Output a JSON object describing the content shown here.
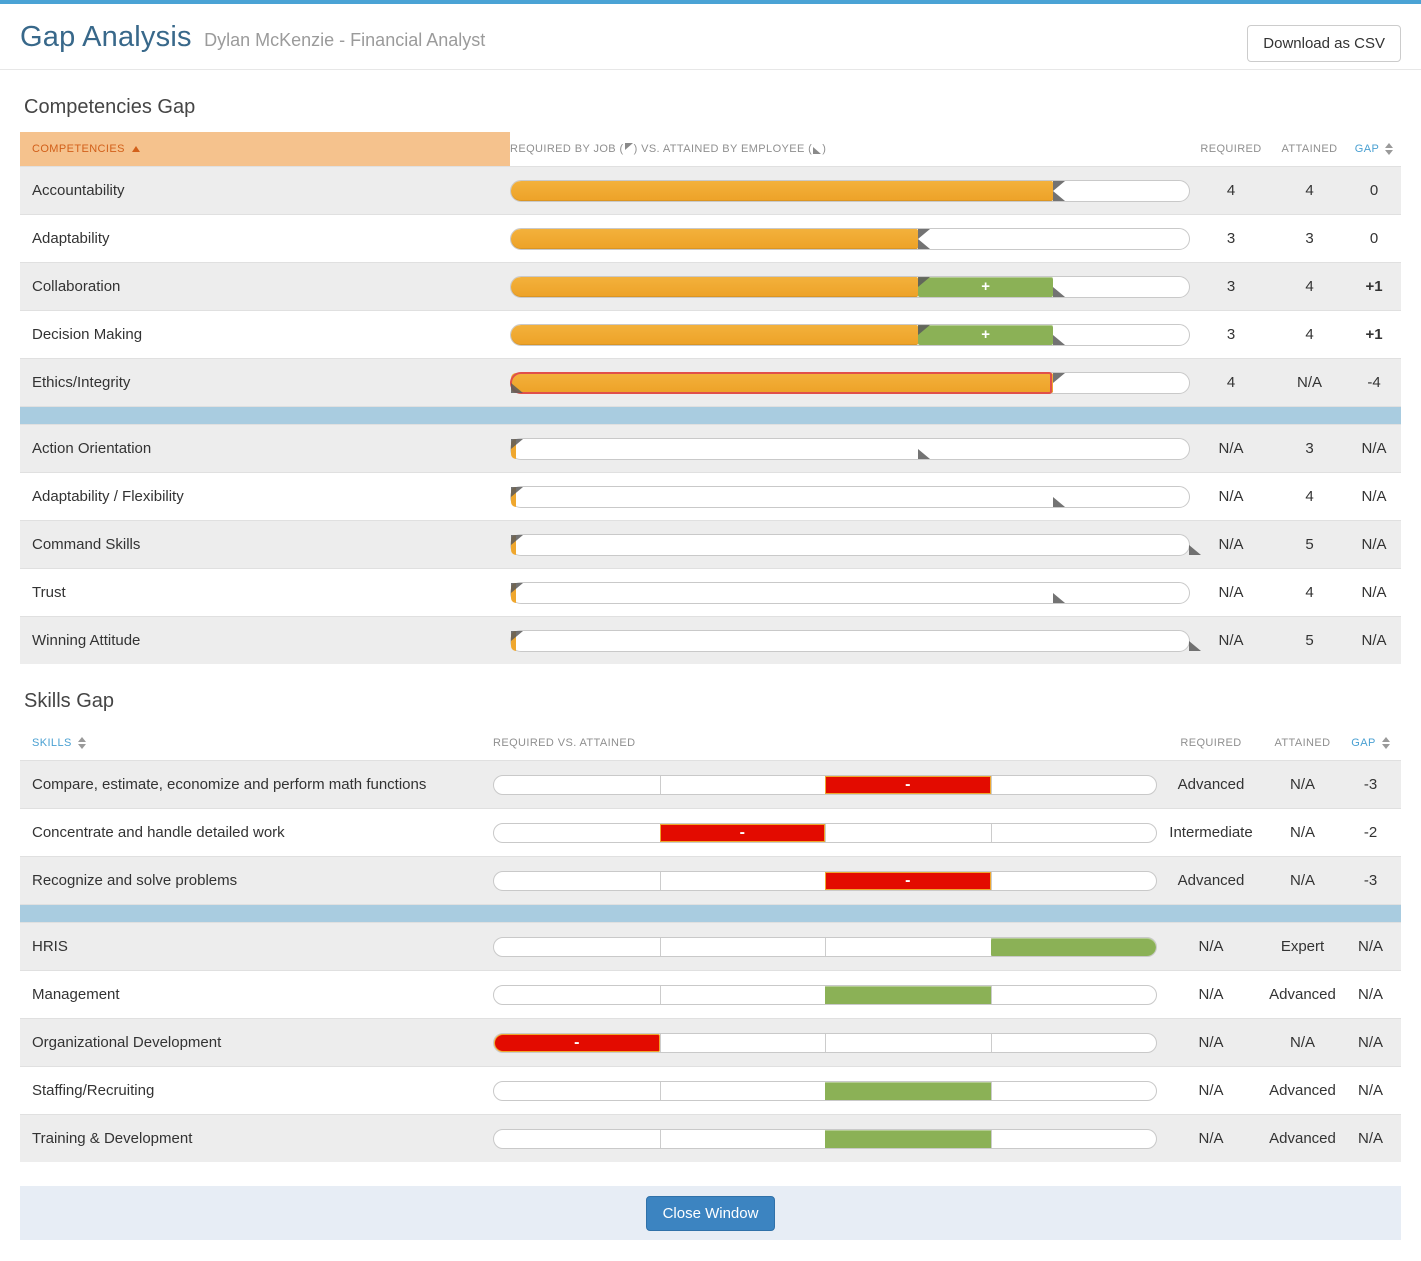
{
  "page": {
    "title": "Gap Analysis",
    "subtitle": "Dylan McKenzie - Financial Analyst",
    "download_button_label": "Download as CSV",
    "close_button_label": "Close Window"
  },
  "colors": {
    "top_accent": "#4aa3d5",
    "title_blue": "#38688a",
    "header_highlight_bg": "#f5c28d",
    "header_highlight_text": "#d2601a",
    "sortable_blue": "#4aa0d2",
    "required_bar_orange": "#efa72e",
    "surplus_green": "#8bb156",
    "deficit_red": "#e30b00",
    "deficit_outline_red": "#e0504a",
    "divider_blue": "#a9cce0",
    "positive_gap_green": "#2f9e1e",
    "flag_gray": "#5a5a5a"
  },
  "competencies": {
    "section_title": "Competencies Gap",
    "scale_max": 5,
    "surplus_label": "+",
    "na_label": "N/A",
    "header": {
      "name": "COMPETENCIES",
      "bar_part1": "REQUIRED BY JOB (",
      "bar_part2": ") VS. ATTAINED BY EMPLOYEE (",
      "bar_part3": ")",
      "required": "REQUIRED",
      "attained": "ATTAINED",
      "gap": "GAP"
    },
    "rows": [
      {
        "name": "Accountability",
        "required": 4,
        "attained": 4,
        "gap": "0"
      },
      {
        "name": "Adaptability",
        "required": 3,
        "attained": 3,
        "gap": "0"
      },
      {
        "name": "Collaboration",
        "required": 3,
        "attained": 4,
        "gap": "+1",
        "gap_positive": true
      },
      {
        "name": "Decision Making",
        "required": 3,
        "attained": 4,
        "gap": "+1",
        "gap_positive": true
      },
      {
        "name": "Ethics/Integrity",
        "required": 4,
        "attained": null,
        "gap": "-4"
      },
      {
        "divider": true
      },
      {
        "name": "Action Orientation",
        "required": null,
        "attained": 3,
        "gap": "N/A"
      },
      {
        "name": "Adaptability / Flexibility",
        "required": null,
        "attained": 4,
        "gap": "N/A"
      },
      {
        "name": "Command Skills",
        "required": null,
        "attained": 5,
        "gap": "N/A"
      },
      {
        "name": "Trust",
        "required": null,
        "attained": 4,
        "gap": "N/A"
      },
      {
        "name": "Winning Attitude",
        "required": null,
        "attained": 5,
        "gap": "N/A"
      }
    ]
  },
  "skills": {
    "section_title": "Skills Gap",
    "levels": 4,
    "deficit_label": "-",
    "header": {
      "name": "SKILLS",
      "bar": "REQUIRED VS. ATTAINED",
      "required": "REQUIRED",
      "attained": "ATTAINED",
      "gap": "GAP"
    },
    "rows": [
      {
        "name": "Compare, estimate, economize and perform math functions",
        "required": "Advanced",
        "attained": "N/A",
        "gap": "-3",
        "block": {
          "segment": 3,
          "kind": "deficit"
        }
      },
      {
        "name": "Concentrate and handle detailed work",
        "required": "Intermediate",
        "attained": "N/A",
        "gap": "-2",
        "block": {
          "segment": 2,
          "kind": "deficit"
        }
      },
      {
        "name": "Recognize and solve problems",
        "required": "Advanced",
        "attained": "N/A",
        "gap": "-3",
        "block": {
          "segment": 3,
          "kind": "deficit"
        }
      },
      {
        "divider": true
      },
      {
        "name": "HRIS",
        "required": "N/A",
        "attained": "Expert",
        "gap": "N/A",
        "block": {
          "segment": 4,
          "kind": "attained"
        }
      },
      {
        "name": "Management",
        "required": "N/A",
        "attained": "Advanced",
        "gap": "N/A",
        "block": {
          "segment": 3,
          "kind": "attained"
        }
      },
      {
        "name": "Organizational Development",
        "required": "N/A",
        "attained": "N/A",
        "gap": "N/A",
        "block": {
          "segment": 1,
          "kind": "deficit"
        }
      },
      {
        "name": "Staffing/Recruiting",
        "required": "N/A",
        "attained": "Advanced",
        "gap": "N/A",
        "block": {
          "segment": 3,
          "kind": "attained"
        }
      },
      {
        "name": "Training & Development",
        "required": "N/A",
        "attained": "Advanced",
        "gap": "N/A",
        "block": {
          "segment": 3,
          "kind": "attained"
        }
      }
    ]
  }
}
